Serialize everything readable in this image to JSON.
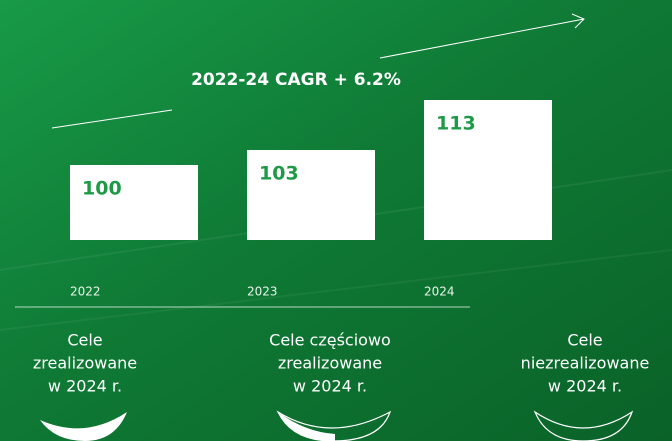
{
  "chart_data": {
    "type": "bar",
    "categories": [
      "2022",
      "2023",
      "2024"
    ],
    "values": [
      100,
      103,
      113
    ],
    "color": "#ffffff",
    "ylim": [
      85,
      130
    ],
    "annotation": "2022-24 CAGR + 6.2%",
    "status_labels": [
      [
        "Cele",
        "zrealizowane",
        "w 2024 r."
      ],
      [
        "Cele częściowo",
        "zrealizowane",
        "w 2024 r."
      ],
      [
        "Cele",
        "niezrealizowane",
        "w 2024 r."
      ]
    ]
  }
}
